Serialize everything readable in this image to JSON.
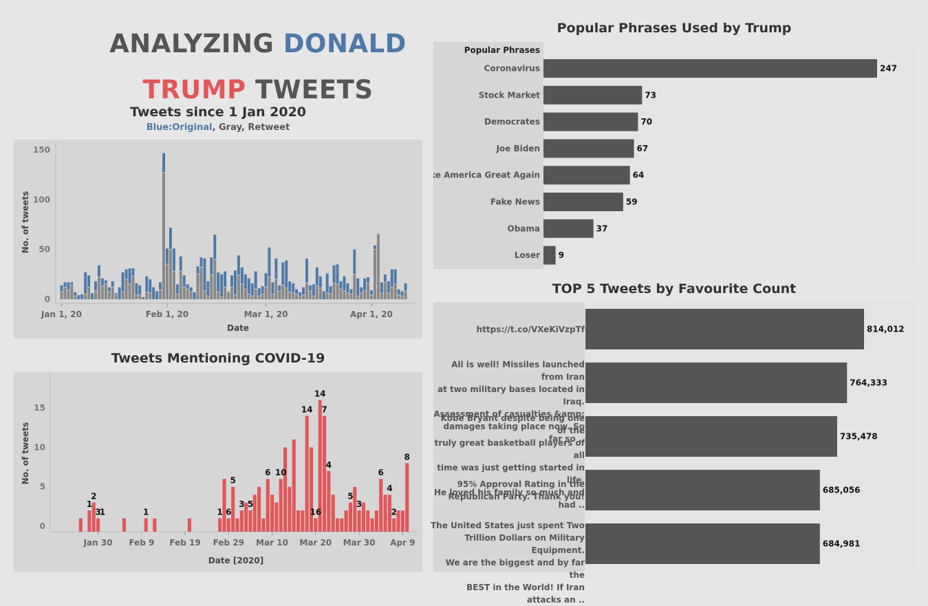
{
  "dashboard_title": {
    "part1": "ANALYZING ",
    "part2": "DONALD",
    "part3": "TRUMP",
    "part4": " TWEETS"
  },
  "colors": {
    "blue": "#4e79a7",
    "gray": "#888888",
    "red": "#e15759",
    "bar_dark": "#555555",
    "panel": "#d6d6d6"
  },
  "chart_data": [
    {
      "id": "tweets",
      "type": "bar",
      "title": "Tweets since 1 Jan 2020",
      "subtitle": {
        "blue": "Blue:Original",
        "rest": ", Gray, Retweet"
      },
      "xlabel": "Date",
      "ylabel": "No. of tweets",
      "ylim": [
        0,
        155
      ],
      "yticks": [
        0,
        50,
        100,
        150
      ],
      "xticks": [
        {
          "label": "Jan 1, 20",
          "day": 1
        },
        {
          "label": "Feb 1, 20",
          "day": 32
        },
        {
          "label": "Mar 1, 20",
          "day": 61
        },
        {
          "label": "Apr 1, 20",
          "day": 92
        }
      ],
      "stacked": true,
      "x": [
        "Jan 1",
        "Jan 2",
        "Jan 3",
        "Jan 4",
        "Jan 5",
        "Jan 6",
        "Jan 7",
        "Jan 8",
        "Jan 9",
        "Jan 10",
        "Jan 11",
        "Jan 12",
        "Jan 13",
        "Jan 14",
        "Jan 15",
        "Jan 16",
        "Jan 17",
        "Jan 18",
        "Jan 19",
        "Jan 20",
        "Jan 21",
        "Jan 22",
        "Jan 23",
        "Jan 24",
        "Jan 25",
        "Jan 26",
        "Jan 27",
        "Jan 28",
        "Jan 29",
        "Jan 30",
        "Jan 31",
        "Feb 1",
        "Feb 2",
        "Feb 3",
        "Feb 4",
        "Feb 5",
        "Feb 6",
        "Feb 7",
        "Feb 8",
        "Feb 9",
        "Feb 10",
        "Feb 11",
        "Feb 12",
        "Feb 13",
        "Feb 14",
        "Feb 15",
        "Feb 16",
        "Feb 17",
        "Feb 18",
        "Feb 19",
        "Feb 20",
        "Feb 21",
        "Feb 22",
        "Feb 23",
        "Feb 24",
        "Feb 25",
        "Feb 26",
        "Feb 27",
        "Feb 28",
        "Feb 29",
        "Mar 1",
        "Mar 2",
        "Mar 3",
        "Mar 4",
        "Mar 5",
        "Mar 6",
        "Mar 7",
        "Mar 8",
        "Mar 9",
        "Mar 10",
        "Mar 11",
        "Mar 12",
        "Mar 13",
        "Mar 14",
        "Mar 15",
        "Mar 16",
        "Mar 17",
        "Mar 18",
        "Mar 19",
        "Mar 20",
        "Mar 21",
        "Mar 22",
        "Mar 23",
        "Mar 24",
        "Mar 25",
        "Mar 26",
        "Mar 27",
        "Mar 28",
        "Mar 29",
        "Mar 30",
        "Mar 31",
        "Apr 1",
        "Apr 2",
        "Apr 3",
        "Apr 4",
        "Apr 5",
        "Apr 6",
        "Apr 7",
        "Apr 8",
        "Apr 9",
        "Apr 10",
        "Apr 11"
      ],
      "series": [
        {
          "name": "Retweet",
          "values": [
            7,
            12,
            9,
            14,
            3,
            0,
            0,
            5,
            12,
            0,
            8,
            22,
            13,
            15,
            7,
            12,
            4,
            0,
            7,
            20,
            15,
            23,
            4,
            4,
            0,
            7,
            6,
            0,
            0,
            9,
            127,
            35,
            50,
            28,
            5,
            28,
            12,
            10,
            7,
            0,
            25,
            32,
            8,
            3,
            24,
            40,
            7,
            2,
            12,
            7,
            12,
            4,
            24,
            15,
            10,
            5,
            3,
            10,
            3,
            5,
            12,
            22,
            5,
            20,
            8,
            14,
            11,
            7,
            6,
            5,
            3,
            4,
            16,
            8,
            3,
            13,
            11,
            0,
            6,
            5,
            16,
            15,
            10,
            8,
            6,
            5,
            25,
            3,
            6,
            8,
            16,
            4,
            50,
            65,
            6,
            17,
            6,
            12,
            15,
            4,
            3,
            8
          ]
        },
        {
          "name": "Original",
          "values": [
            7,
            5,
            8,
            3,
            4,
            4,
            5,
            22,
            12,
            6,
            10,
            12,
            8,
            4,
            5,
            6,
            2,
            12,
            20,
            10,
            16,
            8,
            12,
            10,
            2,
            16,
            14,
            12,
            8,
            8,
            20,
            16,
            22,
            23,
            10,
            15,
            12,
            5,
            5,
            7,
            8,
            10,
            33,
            15,
            18,
            25,
            20,
            23,
            16,
            1,
            12,
            25,
            20,
            17,
            15,
            16,
            13,
            18,
            8,
            8,
            14,
            30,
            12,
            21,
            6,
            23,
            28,
            11,
            10,
            5,
            4,
            8,
            25,
            6,
            12,
            19,
            12,
            8,
            20,
            8,
            18,
            20,
            8,
            15,
            10,
            5,
            25,
            18,
            6,
            13,
            6,
            5,
            4,
            1,
            11,
            8,
            12,
            18,
            15,
            6,
            5,
            8
          ]
        }
      ]
    },
    {
      "id": "covid",
      "type": "bar",
      "title": "Tweets Mentioning COVID-19",
      "xlabel": "Date [2020]",
      "ylabel": "No. of tweets",
      "ylim": [
        0,
        18
      ],
      "yticks": [
        0,
        5,
        10,
        15
      ],
      "xticks": [
        {
          "label": "Jan 30",
          "day": 30
        },
        {
          "label": "Feb 9",
          "day": 40
        },
        {
          "label": "Feb 19",
          "day": 50
        },
        {
          "label": "Feb 29",
          "day": 60
        },
        {
          "label": "Mar 10",
          "day": 70
        },
        {
          "label": "Mar 20",
          "day": 80
        },
        {
          "label": "Mar 30",
          "day": 90
        },
        {
          "label": "Apr 9",
          "day": 100
        }
      ],
      "days": [
        26,
        28,
        29,
        30,
        36,
        41,
        43,
        51,
        58,
        59,
        60,
        61,
        62,
        63,
        64,
        65,
        66,
        67,
        68,
        69,
        70,
        71,
        72,
        73,
        74,
        75,
        76,
        77,
        78,
        79,
        80,
        81,
        82,
        83,
        84,
        85,
        86,
        87,
        88,
        89,
        90,
        91,
        92,
        93,
        94,
        95,
        96,
        97,
        98,
        99,
        100,
        101
      ],
      "x": [
        "Jan 26",
        "Jan 28",
        "Jan 29",
        "Jan 30",
        "Feb 5",
        "Feb 10",
        "Feb 12",
        "Feb 20",
        "Feb 27",
        "Feb 28",
        "Feb 29",
        "Mar 1",
        "Mar 2",
        "Mar 3",
        "Mar 4",
        "Mar 5",
        "Mar 6",
        "Mar 7",
        "Mar 8",
        "Mar 9",
        "Mar 10",
        "Mar 11",
        "Mar 12",
        "Mar 13",
        "Mar 14",
        "Mar 15",
        "Mar 16",
        "Mar 17",
        "Mar 18",
        "Mar 19",
        "Mar 20",
        "Mar 21",
        "Mar 22",
        "Mar 23",
        "Mar 24",
        "Mar 25",
        "Mar 26",
        "Mar 27",
        "Mar 28",
        "Mar 29",
        "Mar 30",
        "Mar 31",
        "Apr 1",
        "Apr 2",
        "Apr 3",
        "Apr 4",
        "Apr 5",
        "Apr 6",
        "Apr 7",
        "Apr 8",
        "Apr 9",
        "Apr 10"
      ],
      "values": [
        1,
        2,
        3,
        1,
        1,
        1,
        1,
        1,
        1,
        6,
        1,
        5,
        1,
        2,
        3,
        2,
        4,
        5,
        1,
        6,
        4,
        3,
        6,
        10,
        5,
        11,
        2,
        2,
        14,
        10,
        1,
        16,
        14,
        7,
        4,
        1,
        1,
        2,
        3,
        5,
        2,
        3,
        2,
        1,
        2,
        6,
        4,
        4,
        1,
        2,
        2,
        8
      ],
      "labels": [
        {
          "day": 28,
          "text": "1"
        },
        {
          "day": 29,
          "text": "2"
        },
        {
          "day": 30,
          "text": "3"
        },
        {
          "day": 31,
          "text": "1"
        },
        {
          "day": 41,
          "text": "1"
        },
        {
          "day": 58,
          "text": "1"
        },
        {
          "day": 60,
          "text": "6"
        },
        {
          "day": 61,
          "text": "5"
        },
        {
          "day": 63,
          "text": "3"
        },
        {
          "day": 65,
          "text": "5"
        },
        {
          "day": 69,
          "text": "6"
        },
        {
          "day": 72,
          "text": "10"
        },
        {
          "day": 78,
          "text": "14"
        },
        {
          "day": 80,
          "text": "16"
        },
        {
          "day": 81,
          "text": "14"
        },
        {
          "day": 82,
          "text": "7"
        },
        {
          "day": 83,
          "text": "4"
        },
        {
          "day": 88,
          "text": "5"
        },
        {
          "day": 90,
          "text": "3"
        },
        {
          "day": 95,
          "text": "6"
        },
        {
          "day": 97,
          "text": "4"
        },
        {
          "day": 98,
          "text": "2"
        },
        {
          "day": 101,
          "text": "8"
        }
      ]
    },
    {
      "id": "phrases",
      "type": "bar",
      "orientation": "horizontal",
      "title": "Popular Phrases Used by Trump",
      "header": "Popular Phrases",
      "categories": [
        "Coronavirus",
        "Stock Market",
        "Democrates",
        "Joe Biden",
        "Make America Great Again",
        "Fake News",
        "Obama",
        "Loser"
      ],
      "values": [
        247,
        73,
        70,
        67,
        64,
        59,
        37,
        9
      ]
    },
    {
      "id": "top5",
      "type": "bar",
      "orientation": "horizontal",
      "title": "TOP 5 Tweets by Favourite Count",
      "categories": [
        "https://t.co/VXeKiVzpTf",
        "All is well! Missiles launched from Iran at two military bases located in Iraq. Assessment of casualties &amp; damages taking place now. So far so ..",
        "Kobe Bryant despite being one of the truly great basketball players of all time was just getting started in life. He loved his family so much and had ..",
        "95% Approval Rating in the Republican Party. Thank you!",
        "The United States just spent Two Trillion Dollars on Military Equipment. We are the biggest and by far the BEST in the World! If Iran attacks an .."
      ],
      "category_lines": [
        [
          "https://t.co/VXeKiVzpTf"
        ],
        [
          "All is well! Missiles launched from Iran",
          "at two military bases located in Iraq.",
          "Assessment of casualties &amp;",
          "damages taking place now. So far so .."
        ],
        [
          "Kobe Bryant despite being one of the",
          "truly great basketball players of all",
          "time was just getting started in life.",
          "He loved his family so much and had .."
        ],
        [
          "95% Approval Rating in the",
          "Republican Party. Thank you!"
        ],
        [
          "The United States just spent Two",
          "Trillion Dollars on Military Equipment.",
          "We are the biggest and by far the",
          "BEST in the World! If Iran attacks an .."
        ]
      ],
      "values": [
        814012,
        764333,
        735478,
        685056,
        684981
      ],
      "value_labels": [
        "814,012",
        "764,333",
        "735,478",
        "685,056",
        "684,981"
      ]
    }
  ]
}
